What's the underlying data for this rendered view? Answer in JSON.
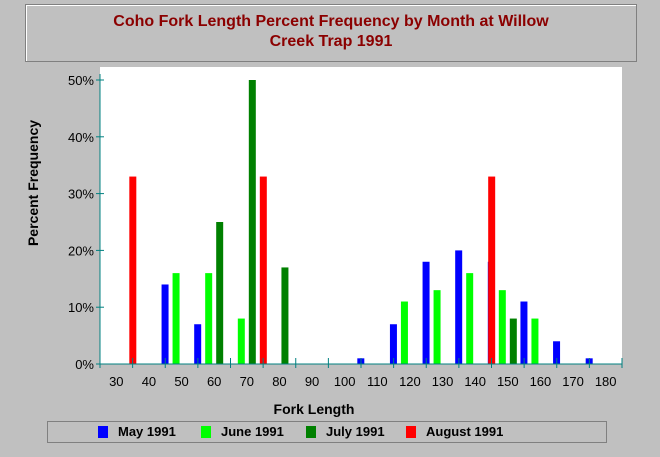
{
  "title_line1": "Coho Fork Length Percent Frequency by Month at Willow",
  "title_line2": "Creek Trap 1991",
  "chart_data": {
    "type": "bar",
    "title": "Coho Fork Length Percent Frequency by Month at Willow Creek Trap 1991",
    "xlabel": "Fork Length",
    "ylabel": "Percent Frequency",
    "ylim": [
      0,
      50
    ],
    "yticks": [
      "0%",
      "10%",
      "20%",
      "30%",
      "40%",
      "50%"
    ],
    "categories": [
      "30",
      "40",
      "50",
      "60",
      "70",
      "80",
      "90",
      "100",
      "110",
      "120",
      "130",
      "140",
      "150",
      "160",
      "170",
      "180"
    ],
    "legend_position": "bottom",
    "grid": false,
    "series": [
      {
        "name": "May 1991",
        "color": "#0000ff",
        "values": [
          0,
          0,
          14,
          7,
          0,
          0,
          0,
          0,
          1,
          7,
          18,
          20,
          18,
          11,
          4,
          1
        ]
      },
      {
        "name": "June 1991",
        "color": "#00ff00",
        "values": [
          0,
          0,
          16,
          16,
          8,
          0,
          0,
          0,
          0,
          11,
          13,
          16,
          13,
          8,
          0,
          0
        ]
      },
      {
        "name": "July 1991",
        "color": "#008000",
        "values": [
          0,
          0,
          0,
          25,
          50,
          17,
          0,
          0,
          0,
          0,
          0,
          0,
          8,
          0,
          0,
          0
        ]
      },
      {
        "name": "August 1991",
        "color": "#ff0000",
        "values": [
          33,
          0,
          0,
          0,
          33,
          0,
          0,
          0,
          0,
          0,
          0,
          33,
          0,
          0,
          0,
          0
        ]
      }
    ]
  }
}
